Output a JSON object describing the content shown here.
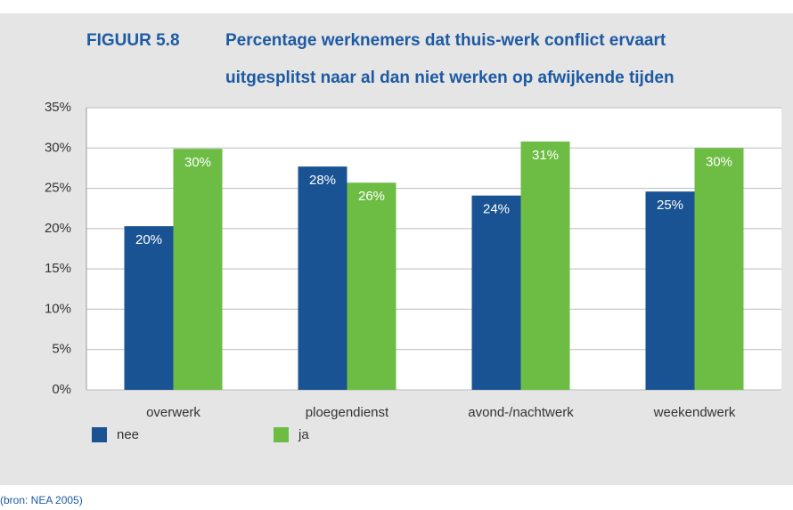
{
  "chart_data": {
    "type": "bar",
    "figure_label": "FIGUUR 5.8",
    "title": [
      "Percentage werknemers dat thuis-werk conflict ervaart",
      "uitgesplitst naar al dan niet werken op afwijkende tijden"
    ],
    "categories": [
      "overwerk",
      "ploegendienst",
      "avond-/nachtwerk",
      "weekendwerk"
    ],
    "series": [
      {
        "name": "nee",
        "color": "#1a5394",
        "values": [
          20.3,
          27.7,
          24.1,
          24.6
        ],
        "value_labels": [
          "20%",
          "28%",
          "24%",
          "25%"
        ]
      },
      {
        "name": "ja",
        "color": "#6dbd45",
        "values": [
          29.9,
          25.7,
          30.8,
          30.0
        ],
        "value_labels": [
          "30%",
          "26%",
          "31%",
          "30%"
        ]
      }
    ],
    "ylim": [
      0,
      35
    ],
    "yticks": [
      {
        "value": 0,
        "label": "0%"
      },
      {
        "value": 5,
        "label": "5%"
      },
      {
        "value": 10,
        "label": "10%"
      },
      {
        "value": 15,
        "label": "15%"
      },
      {
        "value": 20,
        "label": "20%"
      },
      {
        "value": 25,
        "label": "25%"
      },
      {
        "value": 30,
        "label": "30%"
      },
      {
        "value": 35,
        "label": "35%"
      }
    ],
    "grid": true,
    "legend": "bottom-left",
    "source": "(bron: NEA 2005)"
  }
}
